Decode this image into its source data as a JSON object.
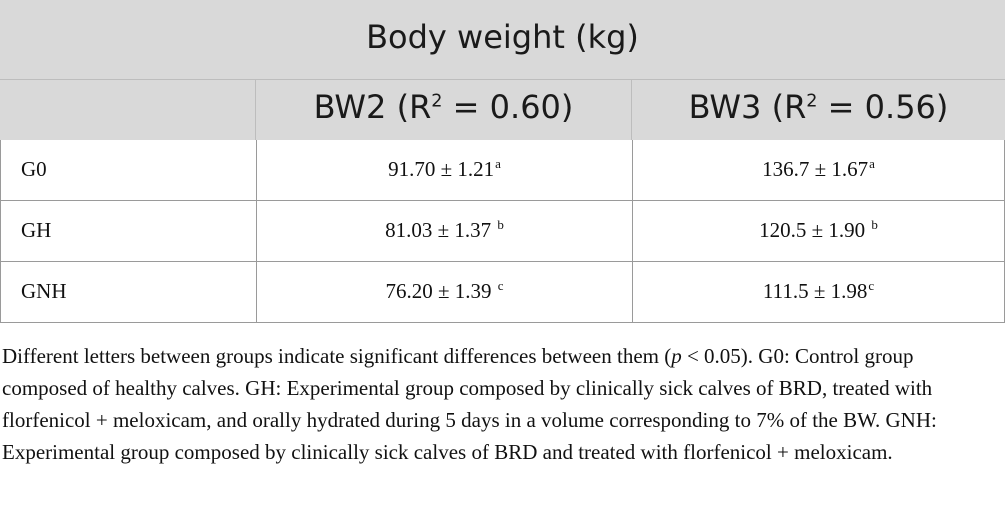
{
  "table": {
    "title": "Body weight (kg)",
    "columns": [
      {
        "label": "BW2 (R",
        "sup": "2",
        "rest": " = 0.60)"
      },
      {
        "label": "BW3 (R",
        "sup": "2",
        "rest": " = 0.56)"
      }
    ],
    "rows": [
      {
        "group": "G0",
        "bw2": "91.70 ± 1.21",
        "bw2_sup": "a",
        "bw3": "136.7 ± 1.67",
        "bw3_sup": "a"
      },
      {
        "group": "GH",
        "bw2": "81.03 ± 1.37 ",
        "bw2_sup": "b",
        "bw3": "120.5 ± 1.90 ",
        "bw3_sup": "b"
      },
      {
        "group": "GNH",
        "bw2": "76.20 ± 1.39 ",
        "bw2_sup": "c",
        "bw3": "111.5 ± 1.98",
        "bw3_sup": "c"
      }
    ]
  },
  "footnote": {
    "part1": "Different letters between groups indicate significant differences between them (",
    "p": "p",
    "part2": " < 0.05). G0: Control group composed of healthy calves. GH: Experimental group composed by clinically sick calves of BRD, treated with florfenicol + meloxicam, and orally hydrated during 5 days in a volume corresponding to 7% of the BW. GNH: Experimental group composed by clinically sick calves of BRD and treated with florfenicol + meloxicam."
  }
}
